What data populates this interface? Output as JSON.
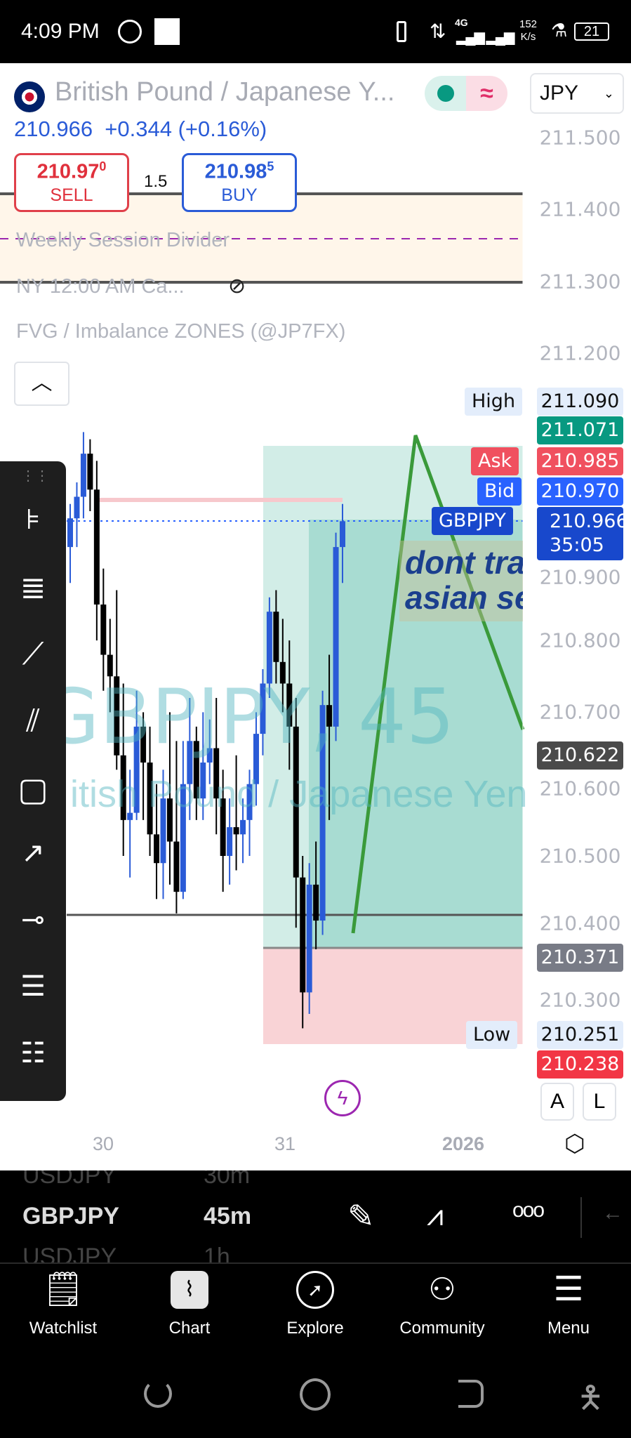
{
  "status_bar": {
    "time": "4:09 PM",
    "network": "4G",
    "speed_value": "152",
    "speed_unit": "K/s",
    "battery": "21"
  },
  "header": {
    "title": "British Pound / Japanese Y...",
    "currency": "JPY",
    "price": "210.966",
    "change": "+0.344 (+0.16%)",
    "sell": {
      "price_main": "210.97",
      "price_sup": "0",
      "label": "SELL"
    },
    "spread": "1.5",
    "buy": {
      "price_main": "210.98",
      "price_sup": "5",
      "label": "BUY"
    }
  },
  "legend": {
    "items": [
      "Weekly Session Divider",
      "NY 12:00 AM Ca...",
      "FVG / Imbalance ZONES (@JP7FX)"
    ]
  },
  "watermark": {
    "symbol": "GBPJPY, 45",
    "name": "itish Pound / Japanese Yen"
  },
  "annotation": {
    "line1": "dont tra",
    "line2": "asian se"
  },
  "price_axis": {
    "ticks": [
      "211.500",
      "211.400",
      "211.300",
      "211.200",
      "210.900",
      "210.800",
      "210.700",
      "210.600",
      "210.500",
      "210.400",
      "210.300"
    ]
  },
  "price_tags": {
    "high_label": "High",
    "high": "211.090",
    "green": "211.071",
    "ask_label": "Ask",
    "ask": "210.985",
    "bid_label": "Bid",
    "bid": "210.970",
    "symbol_label": "GBPJPY",
    "last": "210.966",
    "countdown": "35:05",
    "dark": "210.622",
    "gray": "210.371",
    "low_label": "Low",
    "low": "210.251",
    "red": "210.238"
  },
  "time_axis": [
    "30",
    "31",
    "2026"
  ],
  "scale_buttons": {
    "auto": "A",
    "log": "L"
  },
  "colors": {
    "bull": "#2a5bd7",
    "bear": "#000000",
    "ask": "#f0505f",
    "bid": "#2962ff",
    "symbol_tag": "#1848cc",
    "high_green": "#089981",
    "target_zone": "#a8dcd2",
    "stop_zone": "#f9d3d6",
    "zigzag": "#3a9a3a",
    "accent_purple": "#9c27b0"
  },
  "symbol_picker": {
    "prev": {
      "symbol": "USDJPY",
      "interval": "30m"
    },
    "current": {
      "symbol": "GBPJPY",
      "interval": "45m"
    },
    "next": {
      "symbol": "USDJPY",
      "interval": "1h"
    }
  },
  "bottom_nav": [
    {
      "label": "Watchlist",
      "icon": "bookmark-list-icon"
    },
    {
      "label": "Chart",
      "icon": "chart-icon"
    },
    {
      "label": "Explore",
      "icon": "compass-icon"
    },
    {
      "label": "Community",
      "icon": "community-icon"
    },
    {
      "label": "Menu",
      "icon": "menu-icon"
    }
  ],
  "chart_data": {
    "type": "candlestick",
    "price_range": [
      210.24,
      211.52
    ],
    "candles": [
      [
        210.93,
        210.99,
        210.88,
        210.97
      ],
      [
        210.97,
        211.02,
        210.93,
        211.0
      ],
      [
        211.0,
        211.09,
        210.97,
        211.06
      ],
      [
        211.06,
        211.08,
        210.98,
        211.01
      ],
      [
        211.01,
        211.05,
        210.8,
        210.85
      ],
      [
        210.85,
        210.9,
        210.73,
        210.78
      ],
      [
        210.78,
        210.83,
        210.7,
        210.75
      ],
      [
        210.75,
        210.87,
        210.62,
        210.64
      ],
      [
        210.64,
        210.74,
        210.5,
        210.55
      ],
      [
        210.55,
        210.62,
        210.47,
        210.56
      ],
      [
        210.56,
        210.73,
        210.55,
        210.68
      ],
      [
        210.68,
        210.7,
        210.55,
        210.63
      ],
      [
        210.63,
        210.68,
        210.5,
        210.53
      ],
      [
        210.53,
        210.6,
        210.44,
        210.49
      ],
      [
        210.49,
        210.62,
        210.44,
        210.58
      ],
      [
        210.58,
        210.7,
        210.46,
        210.52
      ],
      [
        210.52,
        210.66,
        210.42,
        210.45
      ],
      [
        210.45,
        210.66,
        210.44,
        210.6
      ],
      [
        210.6,
        210.72,
        210.55,
        210.66
      ],
      [
        210.66,
        210.68,
        210.55,
        210.58
      ],
      [
        210.58,
        210.7,
        210.55,
        210.63
      ],
      [
        210.63,
        210.69,
        210.6,
        210.65
      ],
      [
        210.65,
        210.72,
        210.53,
        210.58
      ],
      [
        210.58,
        210.62,
        210.45,
        210.5
      ],
      [
        210.5,
        210.58,
        210.46,
        210.54
      ],
      [
        210.54,
        210.64,
        210.48,
        210.53
      ],
      [
        210.53,
        210.58,
        210.49,
        210.55
      ],
      [
        210.55,
        210.62,
        210.5,
        210.6
      ],
      [
        210.6,
        210.7,
        210.57,
        210.67
      ],
      [
        210.67,
        210.76,
        210.64,
        210.74
      ],
      [
        210.74,
        210.86,
        210.72,
        210.84
      ],
      [
        210.84,
        210.87,
        210.74,
        210.77
      ],
      [
        210.77,
        210.83,
        210.7,
        210.74
      ],
      [
        210.74,
        210.8,
        210.62,
        210.68
      ],
      [
        210.68,
        210.72,
        210.4,
        210.47
      ],
      [
        210.47,
        210.5,
        210.26,
        210.31
      ],
      [
        210.31,
        210.49,
        210.28,
        210.46
      ],
      [
        210.46,
        210.52,
        210.37,
        210.41
      ],
      [
        210.41,
        210.73,
        210.39,
        210.71
      ],
      [
        210.71,
        210.78,
        210.55,
        210.68
      ],
      [
        210.68,
        210.95,
        210.66,
        210.93
      ],
      [
        210.93,
        210.99,
        210.88,
        210.966
      ]
    ]
  }
}
